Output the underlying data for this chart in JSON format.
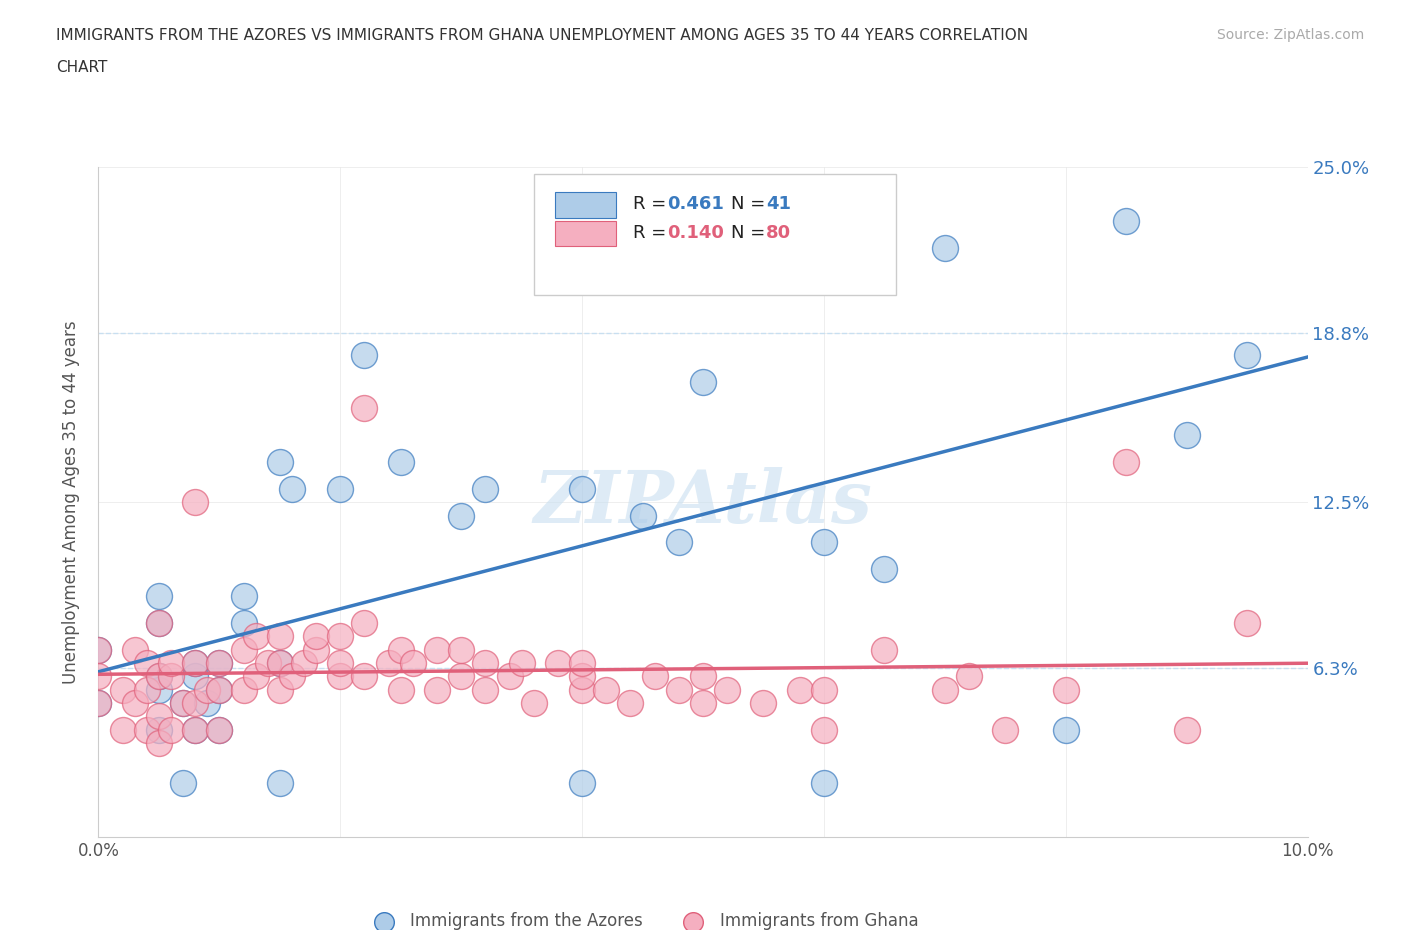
{
  "title_line1": "IMMIGRANTS FROM THE AZORES VS IMMIGRANTS FROM GHANA UNEMPLOYMENT AMONG AGES 35 TO 44 YEARS CORRELATION",
  "title_line2": "CHART",
  "source": "Source: ZipAtlas.com",
  "ylabel": "Unemployment Among Ages 35 to 44 years",
  "xlim": [
    0.0,
    0.1
  ],
  "ylim": [
    0.0,
    0.25
  ],
  "y_tick_labels_right": [
    "6.3%",
    "12.5%",
    "18.8%",
    "25.0%"
  ],
  "y_tick_labels_right_vals": [
    0.063,
    0.125,
    0.188,
    0.25
  ],
  "azores_color": "#aecce8",
  "ghana_color": "#f5afc0",
  "azores_line_color": "#3a7abf",
  "ghana_line_color": "#e0607a",
  "dashed_line_color": "#c8dff0",
  "R_azores": 0.461,
  "N_azores": 41,
  "R_ghana": 0.14,
  "N_ghana": 80,
  "watermark": "ZIPAtlas",
  "azores_points": [
    [
      0.0,
      0.05
    ],
    [
      0.0,
      0.07
    ],
    [
      0.005,
      0.04
    ],
    [
      0.005,
      0.055
    ],
    [
      0.005,
      0.06
    ],
    [
      0.005,
      0.08
    ],
    [
      0.005,
      0.09
    ],
    [
      0.007,
      0.05
    ],
    [
      0.008,
      0.04
    ],
    [
      0.008,
      0.06
    ],
    [
      0.008,
      0.065
    ],
    [
      0.009,
      0.05
    ],
    [
      0.01,
      0.04
    ],
    [
      0.01,
      0.055
    ],
    [
      0.01,
      0.065
    ],
    [
      0.012,
      0.08
    ],
    [
      0.012,
      0.09
    ],
    [
      0.015,
      0.065
    ],
    [
      0.015,
      0.14
    ],
    [
      0.016,
      0.13
    ],
    [
      0.02,
      0.13
    ],
    [
      0.022,
      0.18
    ],
    [
      0.025,
      0.14
    ],
    [
      0.03,
      0.12
    ],
    [
      0.032,
      0.13
    ],
    [
      0.04,
      0.13
    ],
    [
      0.05,
      0.17
    ],
    [
      0.052,
      0.22
    ],
    [
      0.045,
      0.12
    ],
    [
      0.048,
      0.11
    ],
    [
      0.06,
      0.11
    ],
    [
      0.065,
      0.1
    ],
    [
      0.07,
      0.22
    ],
    [
      0.085,
      0.23
    ],
    [
      0.09,
      0.15
    ],
    [
      0.095,
      0.18
    ],
    [
      0.007,
      0.02
    ],
    [
      0.015,
      0.02
    ],
    [
      0.04,
      0.02
    ],
    [
      0.06,
      0.02
    ],
    [
      0.08,
      0.04
    ]
  ],
  "ghana_points": [
    [
      0.0,
      0.05
    ],
    [
      0.0,
      0.06
    ],
    [
      0.0,
      0.07
    ],
    [
      0.002,
      0.04
    ],
    [
      0.002,
      0.055
    ],
    [
      0.003,
      0.05
    ],
    [
      0.003,
      0.07
    ],
    [
      0.004,
      0.04
    ],
    [
      0.004,
      0.055
    ],
    [
      0.004,
      0.065
    ],
    [
      0.005,
      0.035
    ],
    [
      0.005,
      0.045
    ],
    [
      0.005,
      0.06
    ],
    [
      0.005,
      0.08
    ],
    [
      0.006,
      0.04
    ],
    [
      0.006,
      0.06
    ],
    [
      0.006,
      0.065
    ],
    [
      0.007,
      0.05
    ],
    [
      0.008,
      0.04
    ],
    [
      0.008,
      0.05
    ],
    [
      0.008,
      0.065
    ],
    [
      0.008,
      0.125
    ],
    [
      0.009,
      0.055
    ],
    [
      0.01,
      0.04
    ],
    [
      0.01,
      0.055
    ],
    [
      0.01,
      0.065
    ],
    [
      0.012,
      0.055
    ],
    [
      0.012,
      0.07
    ],
    [
      0.013,
      0.06
    ],
    [
      0.013,
      0.075
    ],
    [
      0.014,
      0.065
    ],
    [
      0.015,
      0.055
    ],
    [
      0.015,
      0.065
    ],
    [
      0.015,
      0.075
    ],
    [
      0.016,
      0.06
    ],
    [
      0.017,
      0.065
    ],
    [
      0.018,
      0.07
    ],
    [
      0.018,
      0.075
    ],
    [
      0.02,
      0.06
    ],
    [
      0.02,
      0.065
    ],
    [
      0.02,
      0.075
    ],
    [
      0.022,
      0.06
    ],
    [
      0.022,
      0.08
    ],
    [
      0.022,
      0.16
    ],
    [
      0.024,
      0.065
    ],
    [
      0.025,
      0.055
    ],
    [
      0.025,
      0.07
    ],
    [
      0.026,
      0.065
    ],
    [
      0.028,
      0.055
    ],
    [
      0.028,
      0.07
    ],
    [
      0.03,
      0.06
    ],
    [
      0.03,
      0.07
    ],
    [
      0.032,
      0.055
    ],
    [
      0.032,
      0.065
    ],
    [
      0.034,
      0.06
    ],
    [
      0.035,
      0.065
    ],
    [
      0.036,
      0.05
    ],
    [
      0.038,
      0.065
    ],
    [
      0.04,
      0.055
    ],
    [
      0.04,
      0.06
    ],
    [
      0.04,
      0.065
    ],
    [
      0.042,
      0.055
    ],
    [
      0.044,
      0.05
    ],
    [
      0.046,
      0.06
    ],
    [
      0.048,
      0.055
    ],
    [
      0.05,
      0.05
    ],
    [
      0.05,
      0.06
    ],
    [
      0.052,
      0.055
    ],
    [
      0.055,
      0.05
    ],
    [
      0.058,
      0.055
    ],
    [
      0.06,
      0.04
    ],
    [
      0.06,
      0.055
    ],
    [
      0.065,
      0.07
    ],
    [
      0.07,
      0.055
    ],
    [
      0.072,
      0.06
    ],
    [
      0.075,
      0.04
    ],
    [
      0.08,
      0.055
    ],
    [
      0.085,
      0.14
    ],
    [
      0.09,
      0.04
    ],
    [
      0.095,
      0.08
    ]
  ],
  "figsize": [
    14.06,
    9.3
  ],
  "dpi": 100
}
